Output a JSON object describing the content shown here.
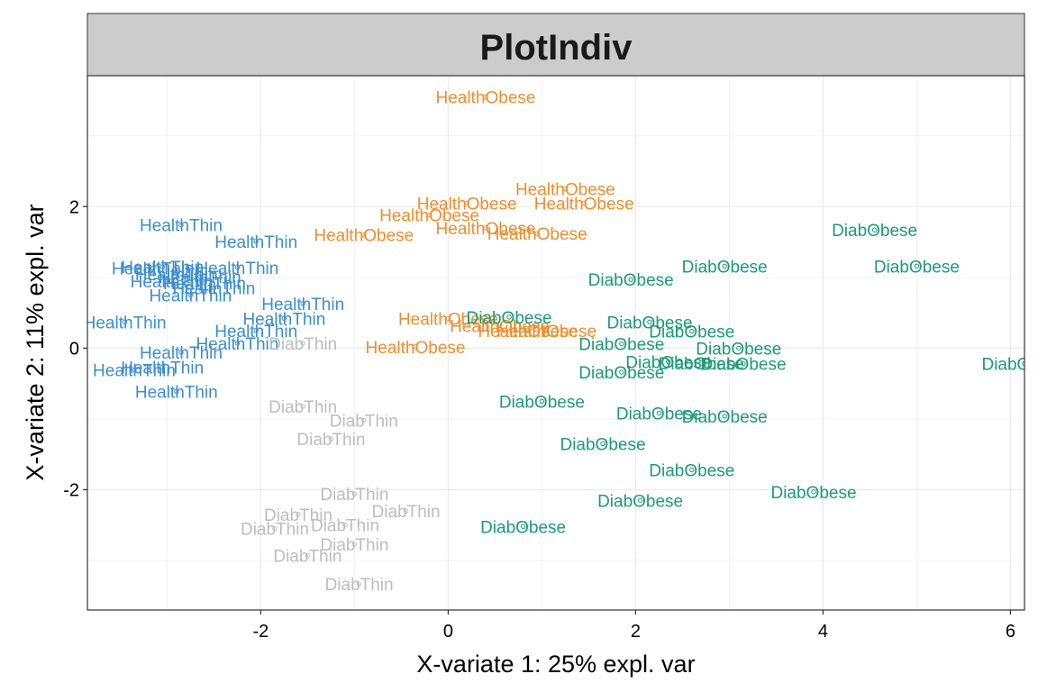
{
  "chart_data": {
    "type": "scatter",
    "title": "PlotIndiv",
    "xlabel": "X-variate 1: 25% expl. var",
    "ylabel": "X-variate 2: 11% expl. var",
    "xlim": [
      -3.85,
      6.15
    ],
    "ylim": [
      -3.7,
      3.85
    ],
    "x_ticks": [
      -2,
      0,
      2,
      4,
      6
    ],
    "y_ticks": [
      -2,
      0,
      2
    ],
    "x_tick_labels": [
      "-2",
      "0",
      "2",
      "4",
      "6"
    ],
    "y_tick_labels": [
      "-2",
      "0",
      "2"
    ],
    "grid": true,
    "legend": "none",
    "series": [
      {
        "label": "HealthThin",
        "color": "#3c8dd0",
        "points": [
          [
            -2.85,
            1.74
          ],
          [
            -2.05,
            1.51
          ],
          [
            -3.05,
            1.15
          ],
          [
            -3.15,
            1.13
          ],
          [
            -2.25,
            1.14
          ],
          [
            -2.9,
            1.05
          ],
          [
            -2.65,
            1.01
          ],
          [
            -2.95,
            0.95
          ],
          [
            -2.6,
            0.92
          ],
          [
            -2.5,
            0.85
          ],
          [
            -2.75,
            0.75
          ],
          [
            -1.55,
            0.63
          ],
          [
            -1.75,
            0.42
          ],
          [
            -3.45,
            0.37
          ],
          [
            -2.05,
            0.25
          ],
          [
            -2.25,
            0.07
          ],
          [
            -2.85,
            -0.06
          ],
          [
            -3.05,
            -0.27
          ],
          [
            -3.35,
            -0.31
          ],
          [
            -2.9,
            -0.61
          ]
        ]
      },
      {
        "label": "HealthObese",
        "color": "#f28c2c",
        "points": [
          [
            0.4,
            3.55
          ],
          [
            1.25,
            2.25
          ],
          [
            0.2,
            2.05
          ],
          [
            1.45,
            2.05
          ],
          [
            -0.2,
            1.88
          ],
          [
            0.4,
            1.7
          ],
          [
            0.95,
            1.62
          ],
          [
            -0.9,
            1.6
          ],
          [
            0.0,
            0.42
          ],
          [
            0.55,
            0.32
          ],
          [
            0.85,
            0.25
          ],
          [
            1.05,
            0.25
          ],
          [
            -0.35,
            0.02
          ]
        ]
      },
      {
        "label": "DiabThin",
        "color": "#bdbdbd",
        "points": [
          [
            -1.55,
            0.07
          ],
          [
            -1.55,
            -0.82
          ],
          [
            -0.9,
            -1.02
          ],
          [
            -1.25,
            -1.28
          ],
          [
            -1.0,
            -2.06
          ],
          [
            -0.45,
            -2.3
          ],
          [
            -1.6,
            -2.35
          ],
          [
            -1.1,
            -2.5
          ],
          [
            -1.85,
            -2.55
          ],
          [
            -1.0,
            -2.77
          ],
          [
            -1.5,
            -2.93
          ],
          [
            -0.95,
            -3.33
          ]
        ]
      },
      {
        "label": "DiabObese",
        "color": "#1b9a77",
        "points": [
          [
            4.55,
            1.67
          ],
          [
            2.95,
            1.16
          ],
          [
            5.0,
            1.16
          ],
          [
            1.95,
            0.97
          ],
          [
            0.65,
            0.44
          ],
          [
            2.15,
            0.37
          ],
          [
            2.6,
            0.24
          ],
          [
            1.85,
            0.06
          ],
          [
            3.1,
            0.0
          ],
          [
            2.35,
            -0.19
          ],
          [
            2.7,
            -0.21
          ],
          [
            3.15,
            -0.22
          ],
          [
            6.15,
            -0.22
          ],
          [
            1.85,
            -0.34
          ],
          [
            1.0,
            -0.75
          ],
          [
            2.25,
            -0.92
          ],
          [
            2.95,
            -0.96
          ],
          [
            1.65,
            -1.35
          ],
          [
            2.6,
            -1.72
          ],
          [
            3.9,
            -2.03
          ],
          [
            2.05,
            -2.15
          ],
          [
            0.8,
            -2.52
          ]
        ]
      }
    ]
  }
}
